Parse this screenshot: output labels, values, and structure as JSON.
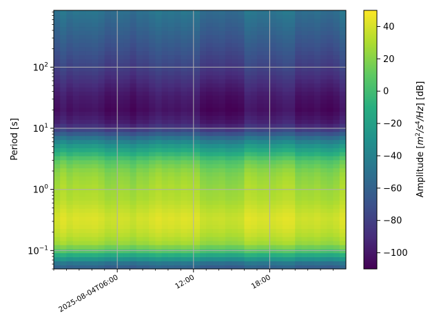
{
  "chart_data": {
    "type": "heatmap",
    "ylabel": "Period [s]",
    "y_scale": "log",
    "ylim": [
      0.05,
      850
    ],
    "y_ticks": [
      {
        "value": 0.1,
        "base": "10",
        "exp": "−1"
      },
      {
        "value": 1,
        "base": "10",
        "exp": "0"
      },
      {
        "value": 10,
        "base": "10",
        "exp": "1"
      },
      {
        "value": 100,
        "base": "10",
        "exp": "2"
      }
    ],
    "x_range_hours": [
      1.0,
      24.0
    ],
    "x_ticks": [
      {
        "hour": 6,
        "label": "2025-08-04T06:00"
      },
      {
        "hour": 12,
        "label": "12:00"
      },
      {
        "hour": 18,
        "label": "18:00"
      }
    ],
    "grid": true,
    "colorbar": {
      "label": "Amplitude [m²/s⁴/Hz] [dB]",
      "label_prefix": "Amplitude [",
      "label_unit_m": "m",
      "label_unit_m_exp": "2",
      "label_unit_s": "/s",
      "label_unit_s_exp": "4",
      "label_unit_tail": "/Hz",
      "label_suffix": "] [dB]",
      "range": [
        -110,
        50
      ],
      "ticks": [
        {
          "value": 40,
          "label": "40"
        },
        {
          "value": 20,
          "label": "20"
        },
        {
          "value": 0,
          "label": "0"
        },
        {
          "value": -20,
          "label": "−20"
        },
        {
          "value": -40,
          "label": "−40"
        },
        {
          "value": -60,
          "label": "−60"
        },
        {
          "value": -80,
          "label": "−80"
        },
        {
          "value": -100,
          "label": "−100"
        }
      ],
      "colormap": "viridis"
    },
    "profile": [
      {
        "period": 0.05,
        "db": -65
      },
      {
        "period": 0.06,
        "db": -55
      },
      {
        "period": 0.075,
        "db": -25
      },
      {
        "period": 0.1,
        "db": 5
      },
      {
        "period": 0.13,
        "db": 25
      },
      {
        "period": 0.18,
        "db": 33
      },
      {
        "period": 0.25,
        "db": 38
      },
      {
        "period": 0.35,
        "db": 40
      },
      {
        "period": 0.5,
        "db": 35
      },
      {
        "period": 0.7,
        "db": 30
      },
      {
        "period": 1.0,
        "db": 28
      },
      {
        "period": 1.5,
        "db": 24
      },
      {
        "period": 2.0,
        "db": 20
      },
      {
        "period": 3.0,
        "db": 8
      },
      {
        "period": 4.0,
        "db": -10
      },
      {
        "period": 5.5,
        "db": -30
      },
      {
        "period": 7.0,
        "db": -50
      },
      {
        "period": 9.0,
        "db": -75
      },
      {
        "period": 12.0,
        "db": -95
      },
      {
        "period": 20.0,
        "db": -105
      },
      {
        "period": 35.0,
        "db": -100
      },
      {
        "period": 60.0,
        "db": -90
      },
      {
        "period": 100.0,
        "db": -80
      },
      {
        "period": 200.0,
        "db": -70
      },
      {
        "period": 400.0,
        "db": -60
      },
      {
        "period": 850.0,
        "db": -50
      }
    ]
  }
}
